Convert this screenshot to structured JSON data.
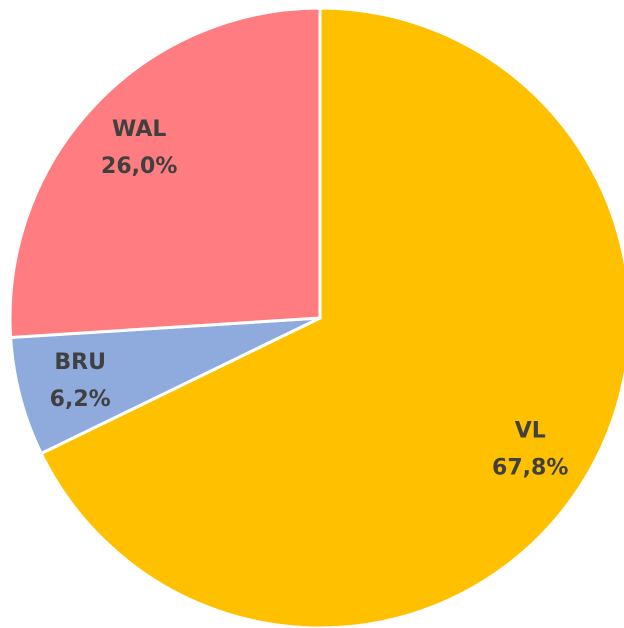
{
  "chart_data": {
    "type": "pie",
    "categories": [
      "VL",
      "BRU",
      "WAL"
    ],
    "values": [
      67.8,
      6.2,
      26.0
    ],
    "value_labels": [
      "67,8%",
      "6,2%",
      "26,0%"
    ],
    "colors": [
      "#ffc000",
      "#8faadc",
      "#ff7c80"
    ]
  }
}
